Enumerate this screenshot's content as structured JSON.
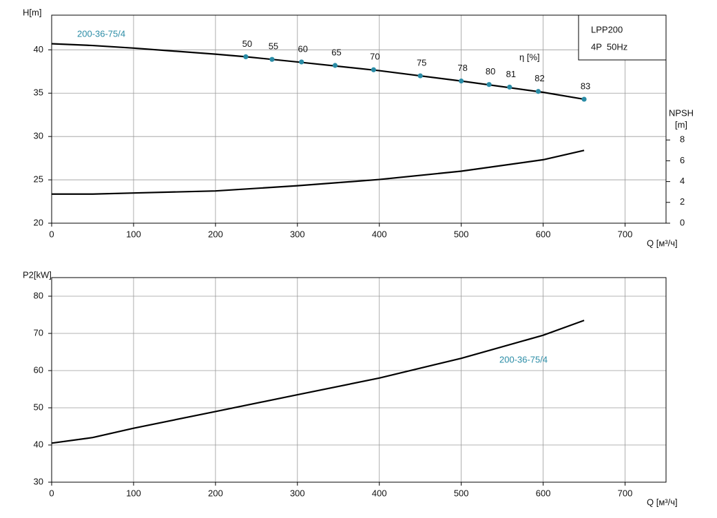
{
  "chart_data": [
    {
      "type": "line",
      "ylabel": "H[m]",
      "y2label": "NPSH",
      "y2unit": "[m]",
      "xlabel": "Q [м³/ч]",
      "box": [
        "LPP200",
        "4P  50Hz"
      ],
      "xlim": [
        0,
        750
      ],
      "xticks": [
        0,
        100,
        200,
        300,
        400,
        500,
        600,
        700
      ],
      "ylim": [
        20,
        44
      ],
      "yticks": [
        20,
        25,
        30,
        35,
        40
      ],
      "y2lim": [
        0,
        20
      ],
      "y2ticks": [
        0,
        2,
        4,
        6,
        8
      ],
      "grid": true,
      "series": [
        {
          "name": "200-36-75/4",
          "color": "#000000",
          "label_color": "#2a8ca6",
          "x": [
            0,
            50,
            100,
            200,
            237,
            300,
            400,
            500,
            600,
            650
          ],
          "values": [
            40.7,
            40.5,
            40.2,
            39.5,
            39.2,
            38.6,
            37.6,
            36.4,
            35.1,
            34.3
          ]
        },
        {
          "axis": "y2",
          "color": "#000000",
          "x": [
            0,
            50,
            100,
            200,
            300,
            400,
            500,
            600,
            650
          ],
          "values": [
            2.8,
            2.8,
            2.9,
            3.1,
            3.6,
            4.2,
            5.0,
            6.1,
            7.0
          ]
        }
      ],
      "efficiency": {
        "label": "η [%]",
        "color": "#2a8ca6",
        "x": [
          237,
          269,
          305,
          346,
          393,
          450,
          500,
          534,
          559,
          594,
          650
        ],
        "values": [
          39.2,
          38.9,
          38.6,
          38.2,
          37.7,
          37.0,
          36.4,
          36.0,
          35.7,
          35.2,
          34.3
        ],
        "labels": [
          50,
          55,
          60,
          65,
          70,
          75,
          78,
          80,
          81,
          82,
          83
        ]
      }
    },
    {
      "type": "line",
      "ylabel": "P2[kW]",
      "xlabel": "Q [м³/ч]",
      "xlim": [
        0,
        750
      ],
      "xticks": [
        0,
        100,
        200,
        300,
        400,
        500,
        600,
        700
      ],
      "ylim": [
        30,
        85
      ],
      "yticks": [
        30,
        40,
        50,
        60,
        70,
        80
      ],
      "grid": true,
      "series": [
        {
          "name": "200-36-75/4",
          "color": "#000000",
          "label_color": "#2a8ca6",
          "x": [
            0,
            50,
            100,
            200,
            300,
            400,
            500,
            600,
            650
          ],
          "values": [
            40.5,
            42.0,
            44.5,
            49.0,
            53.5,
            58.0,
            63.3,
            69.5,
            73.5
          ]
        }
      ]
    }
  ]
}
